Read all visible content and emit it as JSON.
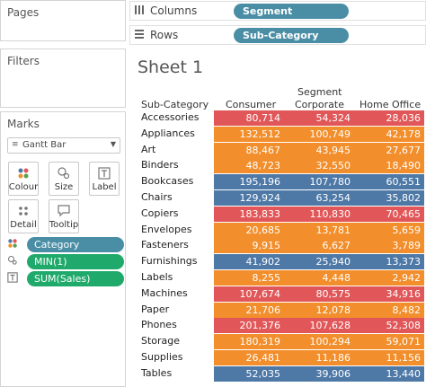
{
  "left_panel": {
    "pages_title": "Pages",
    "filters_title": "Filters",
    "marks_title": "Marks",
    "mark_type": "Gantt Bar",
    "mark_buttons": [
      {
        "label": "Colour",
        "icon": "colour-icon"
      },
      {
        "label": "Size",
        "icon": "size-icon"
      },
      {
        "label": "Label",
        "icon": "label-icon"
      },
      {
        "label": "Detail",
        "icon": "detail-icon"
      },
      {
        "label": "Tooltip",
        "icon": "tooltip-icon"
      }
    ],
    "mark_pills": [
      {
        "label": "Category",
        "icon": "colour-icon",
        "color": "#4a8ea6"
      },
      {
        "label": "MIN(1)",
        "icon": "size-icon",
        "color": "#1faa6b"
      },
      {
        "label": "SUM(Sales)",
        "icon": "label-icon",
        "color": "#1faa6b"
      }
    ]
  },
  "shelves": {
    "columns_label": "Columns",
    "columns_pill": "Segment",
    "rows_label": "Rows",
    "rows_pill": "Sub-Category"
  },
  "sheet": {
    "title": "Sheet 1",
    "row_header": "Sub-Category",
    "segment_header_line1": "Segment",
    "columns": [
      "Consumer",
      "Corporate",
      "Home Office"
    ]
  },
  "colors": {
    "Furniture": "#4e79a7",
    "Office Supplies": "#f28e2b",
    "Technology": "#e15759"
  },
  "table": [
    {
      "sub": "Accessories",
      "cat": "Technology",
      "values": [
        "80,714",
        "54,324",
        "28,036"
      ]
    },
    {
      "sub": "Appliances",
      "cat": "Office Supplies",
      "values": [
        "132,512",
        "100,749",
        "42,178"
      ]
    },
    {
      "sub": "Art",
      "cat": "Office Supplies",
      "values": [
        "88,467",
        "43,945",
        "27,677"
      ]
    },
    {
      "sub": "Binders",
      "cat": "Office Supplies",
      "values": [
        "48,723",
        "32,550",
        "18,490"
      ]
    },
    {
      "sub": "Bookcases",
      "cat": "Furniture",
      "values": [
        "195,196",
        "107,780",
        "60,551"
      ]
    },
    {
      "sub": "Chairs",
      "cat": "Furniture",
      "values": [
        "129,924",
        "63,254",
        "35,802"
      ]
    },
    {
      "sub": "Copiers",
      "cat": "Technology",
      "values": [
        "183,833",
        "110,830",
        "70,465"
      ]
    },
    {
      "sub": "Envelopes",
      "cat": "Office Supplies",
      "values": [
        "20,685",
        "13,781",
        "5,659"
      ]
    },
    {
      "sub": "Fasteners",
      "cat": "Office Supplies",
      "values": [
        "9,915",
        "6,627",
        "3,789"
      ]
    },
    {
      "sub": "Furnishings",
      "cat": "Furniture",
      "values": [
        "41,902",
        "25,940",
        "13,373"
      ]
    },
    {
      "sub": "Labels",
      "cat": "Office Supplies",
      "values": [
        "8,255",
        "4,448",
        "2,942"
      ]
    },
    {
      "sub": "Machines",
      "cat": "Technology",
      "values": [
        "107,674",
        "80,575",
        "34,916"
      ]
    },
    {
      "sub": "Paper",
      "cat": "Office Supplies",
      "values": [
        "21,706",
        "12,078",
        "8,482"
      ]
    },
    {
      "sub": "Phones",
      "cat": "Technology",
      "values": [
        "201,376",
        "107,628",
        "52,308"
      ]
    },
    {
      "sub": "Storage",
      "cat": "Office Supplies",
      "values": [
        "180,319",
        "100,294",
        "59,071"
      ]
    },
    {
      "sub": "Supplies",
      "cat": "Office Supplies",
      "values": [
        "26,481",
        "11,186",
        "11,156"
      ]
    },
    {
      "sub": "Tables",
      "cat": "Furniture",
      "values": [
        "52,035",
        "39,906",
        "13,440"
      ]
    }
  ]
}
